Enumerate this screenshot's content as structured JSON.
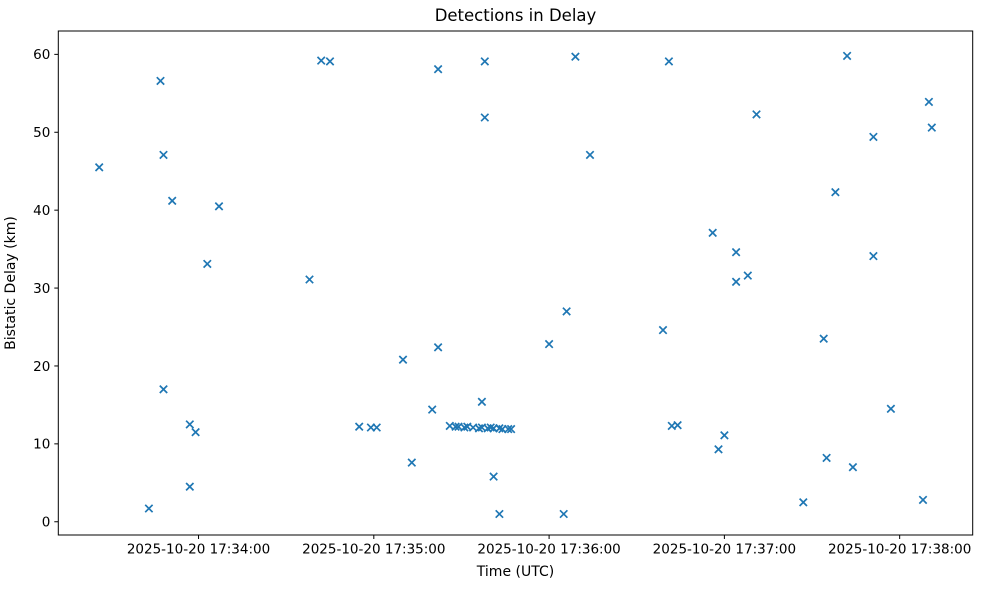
{
  "chart_data": {
    "type": "scatter",
    "title": "Detections in Delay",
    "xlabel": "Time (UTC)",
    "ylabel": "Bistatic Delay (km)",
    "date": "2025-10-20",
    "marker": "x",
    "marker_color": "#1f77b4",
    "grid": false,
    "legend": null,
    "x_tick_labels": [
      "2025-10-20 17:34:00",
      "2025-10-20 17:35:00",
      "2025-10-20 17:36:00",
      "2025-10-20 17:37:00",
      "2025-10-20 17:38:00"
    ],
    "y_ticks": [
      0,
      10,
      20,
      30,
      40,
      50,
      60
    ],
    "xlim_time": [
      "17:33:12",
      "17:38:25"
    ],
    "ylim": [
      -1.7,
      63.0
    ],
    "points_format": [
      "time_utc",
      "bistatic_delay_km"
    ],
    "points": [
      [
        "17:33:26",
        45.5
      ],
      [
        "17:33:43",
        1.7
      ],
      [
        "17:33:47",
        56.6
      ],
      [
        "17:33:48",
        47.1
      ],
      [
        "17:33:48",
        17.0
      ],
      [
        "17:33:51",
        41.2
      ],
      [
        "17:33:57",
        12.5
      ],
      [
        "17:33:57",
        4.5
      ],
      [
        "17:33:59",
        11.5
      ],
      [
        "17:34:03",
        33.1
      ],
      [
        "17:34:07",
        40.5
      ],
      [
        "17:34:38",
        31.1
      ],
      [
        "17:34:42",
        59.2
      ],
      [
        "17:34:45",
        59.1
      ],
      [
        "17:34:55",
        12.2
      ],
      [
        "17:34:59",
        12.1
      ],
      [
        "17:35:01",
        12.1
      ],
      [
        "17:35:10",
        20.8
      ],
      [
        "17:35:13",
        7.6
      ],
      [
        "17:35:20",
        14.4
      ],
      [
        "17:35:22",
        58.1
      ],
      [
        "17:35:22",
        22.4
      ],
      [
        "17:35:26",
        12.3
      ],
      [
        "17:35:28",
        12.2
      ],
      [
        "17:35:29",
        12.2
      ],
      [
        "17:35:31",
        12.1
      ],
      [
        "17:35:32",
        12.2
      ],
      [
        "17:35:34",
        12.1
      ],
      [
        "17:35:36",
        12.0
      ],
      [
        "17:35:37",
        12.1
      ],
      [
        "17:35:37",
        15.4
      ],
      [
        "17:35:38",
        59.1
      ],
      [
        "17:35:38",
        51.9
      ],
      [
        "17:35:39",
        12.0
      ],
      [
        "17:35:40",
        12.1
      ],
      [
        "17:35:41",
        12.0
      ],
      [
        "17:35:41",
        5.8
      ],
      [
        "17:35:43",
        12.0
      ],
      [
        "17:35:43",
        1.0
      ],
      [
        "17:35:44",
        11.9
      ],
      [
        "17:35:46",
        11.9
      ],
      [
        "17:35:47",
        11.9
      ],
      [
        "17:36:00",
        22.8
      ],
      [
        "17:36:05",
        1.0
      ],
      [
        "17:36:06",
        27.0
      ],
      [
        "17:36:09",
        59.7
      ],
      [
        "17:36:14",
        47.1
      ],
      [
        "17:36:39",
        24.6
      ],
      [
        "17:36:41",
        59.1
      ],
      [
        "17:36:42",
        12.3
      ],
      [
        "17:36:44",
        12.4
      ],
      [
        "17:36:56",
        37.1
      ],
      [
        "17:36:58",
        9.3
      ],
      [
        "17:37:00",
        11.1
      ],
      [
        "17:37:04",
        34.6
      ],
      [
        "17:37:04",
        30.8
      ],
      [
        "17:37:08",
        31.6
      ],
      [
        "17:37:11",
        52.3
      ],
      [
        "17:37:27",
        2.5
      ],
      [
        "17:37:34",
        23.5
      ],
      [
        "17:37:35",
        8.2
      ],
      [
        "17:37:38",
        42.3
      ],
      [
        "17:37:42",
        59.8
      ],
      [
        "17:37:44",
        7.0
      ],
      [
        "17:37:51",
        49.4
      ],
      [
        "17:37:51",
        34.1
      ],
      [
        "17:37:57",
        14.5
      ],
      [
        "17:38:08",
        2.8
      ],
      [
        "17:38:10",
        53.9
      ],
      [
        "17:38:11",
        50.6
      ]
    ]
  }
}
